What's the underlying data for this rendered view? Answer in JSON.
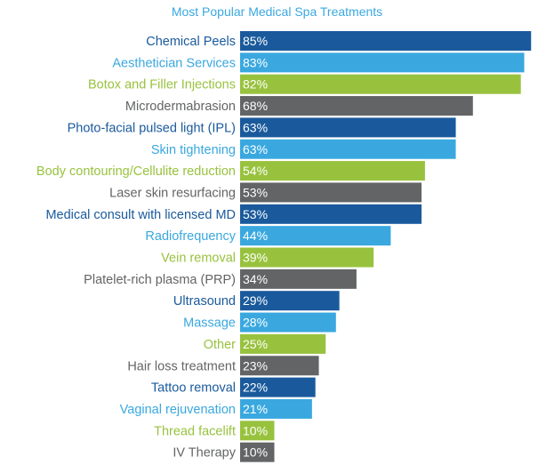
{
  "chart_data": {
    "type": "bar",
    "orientation": "horizontal",
    "title": "Most Popular Medical Spa Treatments",
    "categories": [
      "Chemical Peels",
      "Aesthetician Services",
      "Botox and Filler Injections",
      "Microdermabrasion",
      "Photo-facial pulsed light (IPL)",
      "Skin tightening",
      "Body contouring/Cellulite reduction",
      "Laser skin resurfacing",
      "Medical consult with licensed MD",
      "Radiofrequency",
      "Vein removal",
      "Platelet-rich plasma (PRP)",
      "Ultrasound",
      "Massage",
      "Other",
      "Hair loss treatment",
      "Tattoo removal",
      "Vaginal rejuvenation",
      "Thread facelift",
      "IV Therapy"
    ],
    "values": [
      85,
      83,
      82,
      68,
      63,
      63,
      54,
      53,
      53,
      44,
      39,
      34,
      29,
      28,
      25,
      23,
      22,
      21,
      10,
      10
    ],
    "value_labels": [
      "85%",
      "83%",
      "82%",
      "68%",
      "63%",
      "63%",
      "54%",
      "53%",
      "53%",
      "44%",
      "39%",
      "34%",
      "29%",
      "28%",
      "25%",
      "23%",
      "22%",
      "21%",
      "10%",
      "10%"
    ],
    "xlim": [
      0,
      100
    ],
    "grid": false,
    "legend": "none",
    "palette": [
      "#1a5a9c",
      "#3aa8df",
      "#98c23e",
      "#636466"
    ]
  }
}
